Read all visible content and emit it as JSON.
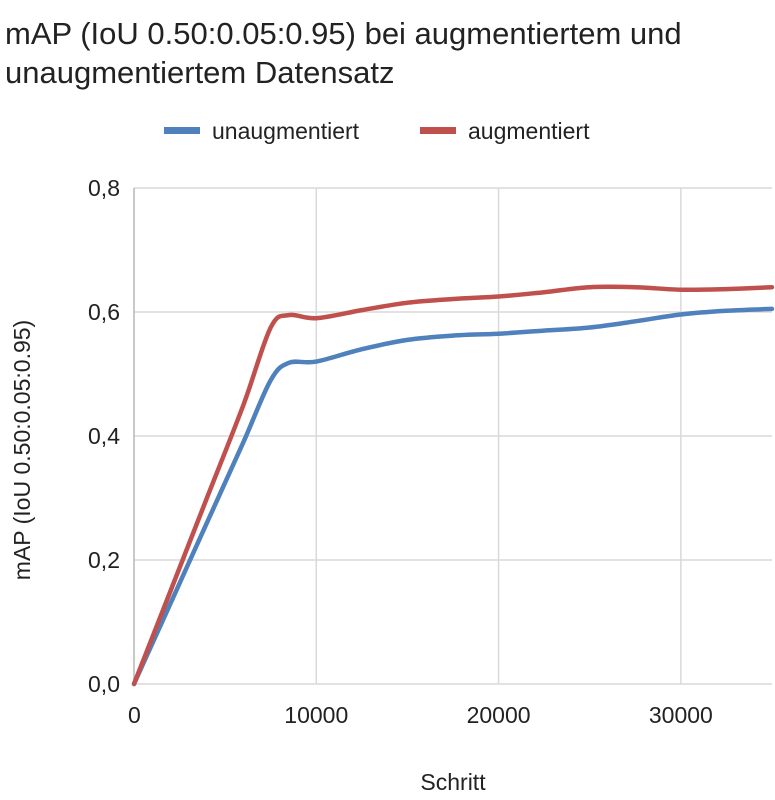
{
  "chart_data": {
    "type": "line",
    "title_lines": [
      "mAP (IoU 0.50:0.05:0.95) bei augmentiertem und",
      "unaugmentiertem Datensatz"
    ],
    "xlabel": "Schritt",
    "ylabel": "mAP (IoU 0.50:0.05:0.95)",
    "xlim": [
      0,
      35000
    ],
    "ylim": [
      0,
      0.8
    ],
    "x_ticks": [
      0,
      10000,
      20000,
      30000
    ],
    "x_tick_labels": [
      "0",
      "10000",
      "20000",
      "30000"
    ],
    "y_ticks": [
      0,
      0.2,
      0.4,
      0.6,
      0.8
    ],
    "y_tick_labels": [
      "0,0",
      "0,2",
      "0,4",
      "0,6",
      "0,8"
    ],
    "grid": true,
    "legend_position": "top",
    "series": [
      {
        "name": "unaugmentiert",
        "color": "#4f81bd",
        "x": [
          0,
          2000,
          4000,
          6000,
          7500,
          8500,
          10000,
          12500,
          15000,
          17500,
          20000,
          22500,
          25000,
          27500,
          30000,
          32500,
          35000
        ],
        "y": [
          0,
          0.13,
          0.26,
          0.39,
          0.49,
          0.518,
          0.52,
          0.54,
          0.555,
          0.562,
          0.565,
          0.57,
          0.575,
          0.585,
          0.596,
          0.602,
          0.605
        ]
      },
      {
        "name": "augmentiert",
        "color": "#c0504d",
        "x": [
          0,
          2000,
          4000,
          6000,
          7500,
          8500,
          10000,
          12500,
          15000,
          17500,
          20000,
          22500,
          25000,
          27500,
          30000,
          32500,
          35000
        ],
        "y": [
          0,
          0.15,
          0.3,
          0.45,
          0.575,
          0.595,
          0.59,
          0.603,
          0.615,
          0.621,
          0.625,
          0.632,
          0.64,
          0.64,
          0.636,
          0.637,
          0.64
        ]
      }
    ]
  }
}
